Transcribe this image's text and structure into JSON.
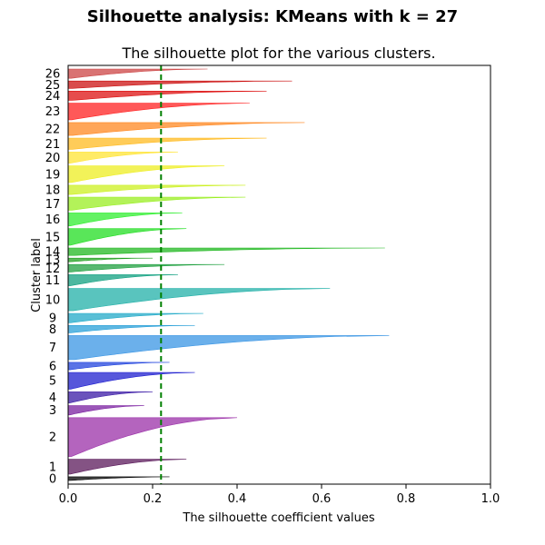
{
  "figure": {
    "suptitle": "Silhouette analysis: KMeans with k = 27"
  },
  "chart_data": {
    "type": "silhouette",
    "title": "The silhouette plot for the various clusters.",
    "xlabel": "The silhouette coefficient values",
    "ylabel": "Cluster label",
    "xlim": [
      0.0,
      1.0
    ],
    "xticks": [
      "0.0",
      "0.2",
      "0.4",
      "0.6",
      "0.8",
      "1.0"
    ],
    "average_silhouette": 0.22,
    "average_line_color": "#008000",
    "clusters": [
      {
        "label": "0",
        "size": 2,
        "max": 0.24,
        "color": "#000000"
      },
      {
        "label": "1",
        "size": 8,
        "max": 0.28,
        "color": "#5b1a5b"
      },
      {
        "label": "2",
        "size": 21,
        "max": 0.4,
        "color": "#9b30a8"
      },
      {
        "label": "3",
        "size": 5,
        "max": 0.18,
        "color": "#7a1fa0"
      },
      {
        "label": "4",
        "size": 6,
        "max": 0.2,
        "color": "#3a1aa6"
      },
      {
        "label": "5",
        "size": 9,
        "max": 0.3,
        "color": "#1f1fcf"
      },
      {
        "label": "6",
        "size": 4,
        "max": 0.24,
        "color": "#2244dd"
      },
      {
        "label": "7",
        "size": 13,
        "max": 0.76,
        "color": "#3a95e4"
      },
      {
        "label": "8",
        "size": 4,
        "max": 0.3,
        "color": "#2aa0d8"
      },
      {
        "label": "9",
        "size": 5,
        "max": 0.32,
        "color": "#22aac8"
      },
      {
        "label": "10",
        "size": 12,
        "max": 0.62,
        "color": "#22b0a8"
      },
      {
        "label": "11",
        "size": 6,
        "max": 0.26,
        "color": "#10a080"
      },
      {
        "label": "12",
        "size": 4,
        "max": 0.37,
        "color": "#20a040"
      },
      {
        "label": "13",
        "size": 2,
        "max": 0.2,
        "color": "#22a020"
      },
      {
        "label": "14",
        "size": 4,
        "max": 0.75,
        "color": "#22b822"
      },
      {
        "label": "15",
        "size": 9,
        "max": 0.28,
        "color": "#22dd22"
      },
      {
        "label": "16",
        "size": 7,
        "max": 0.27,
        "color": "#30ee30"
      },
      {
        "label": "17",
        "size": 7,
        "max": 0.42,
        "color": "#99ee22"
      },
      {
        "label": "18",
        "size": 5,
        "max": 0.42,
        "color": "#ccf022"
      },
      {
        "label": "19",
        "size": 9,
        "max": 0.37,
        "color": "#eeee22"
      },
      {
        "label": "20",
        "size": 6,
        "max": 0.26,
        "color": "#ffe433"
      },
      {
        "label": "21",
        "size": 6,
        "max": 0.47,
        "color": "#ffbb22"
      },
      {
        "label": "22",
        "size": 7,
        "max": 0.56,
        "color": "#ff8822"
      },
      {
        "label": "23",
        "size": 9,
        "max": 0.43,
        "color": "#ff2222"
      },
      {
        "label": "24",
        "size": 5,
        "max": 0.47,
        "color": "#dd1111"
      },
      {
        "label": "25",
        "size": 4,
        "max": 0.53,
        "color": "#cc1111"
      },
      {
        "label": "26",
        "size": 5,
        "max": 0.33,
        "color": "#cc4444"
      }
    ]
  }
}
